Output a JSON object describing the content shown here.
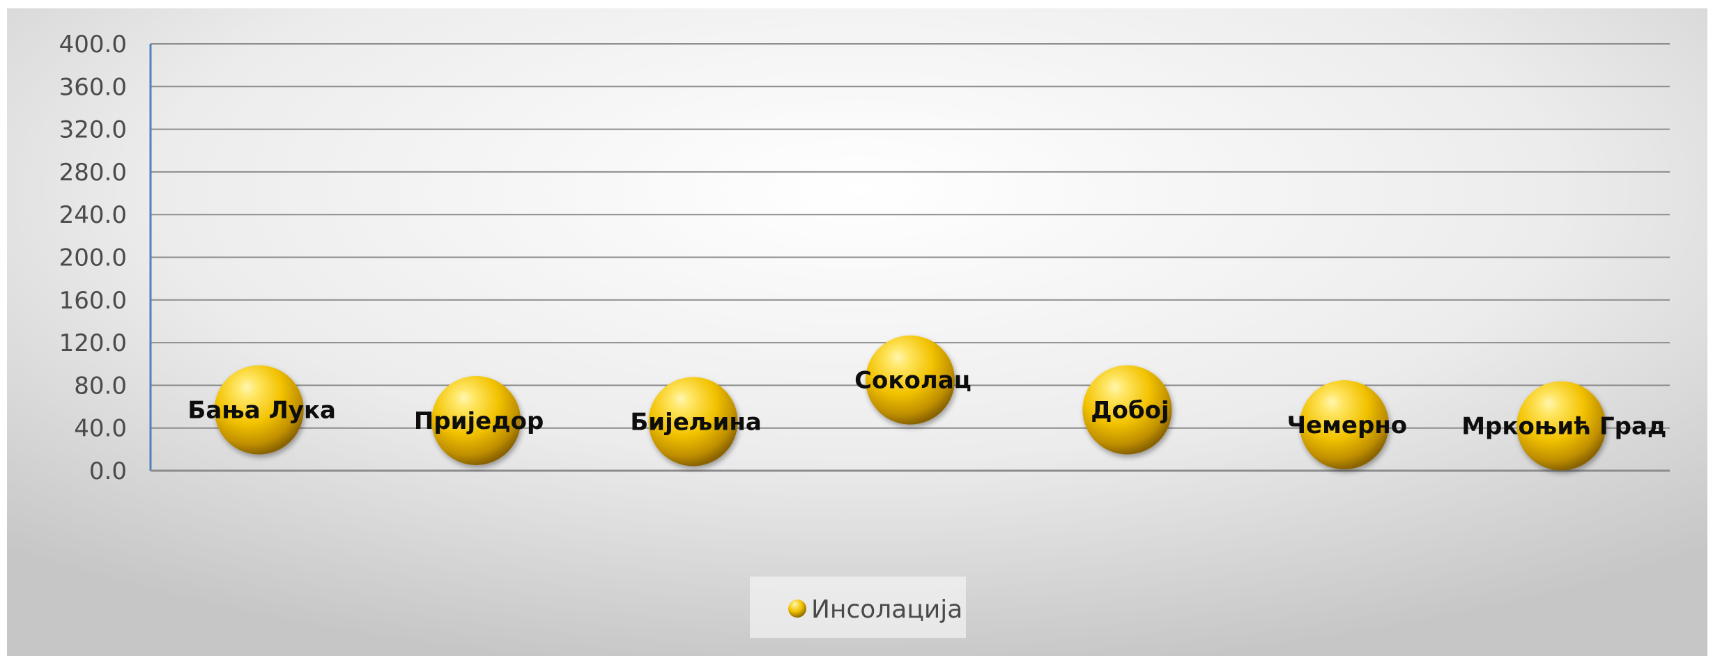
{
  "chart_data": {
    "type": "scatter",
    "title": "",
    "xlabel": "",
    "ylabel": "",
    "categories": [
      "Бања Лука",
      "Приједор",
      "Бијељина",
      "Соколац",
      "Добој",
      "Чемерно",
      "Мркоњић Град"
    ],
    "series": [
      {
        "name": "Инсолација",
        "values": [
          57,
          47,
          46,
          85,
          57,
          43,
          42
        ]
      }
    ],
    "ylim": [
      0,
      400
    ],
    "yticks": [
      "0.0",
      "40.0",
      "80.0",
      "120.0",
      "160.0",
      "200.0",
      "240.0",
      "280.0",
      "320.0",
      "360.0",
      "400.0"
    ],
    "grid": true,
    "legend": "bottom",
    "colors": {
      "marker_highlight": "#fff6b0",
      "marker_mid": "#f2c200",
      "marker_shadow": "#8a6400",
      "gridline": "#8c8c8c",
      "axis": "#4f81bd"
    }
  }
}
